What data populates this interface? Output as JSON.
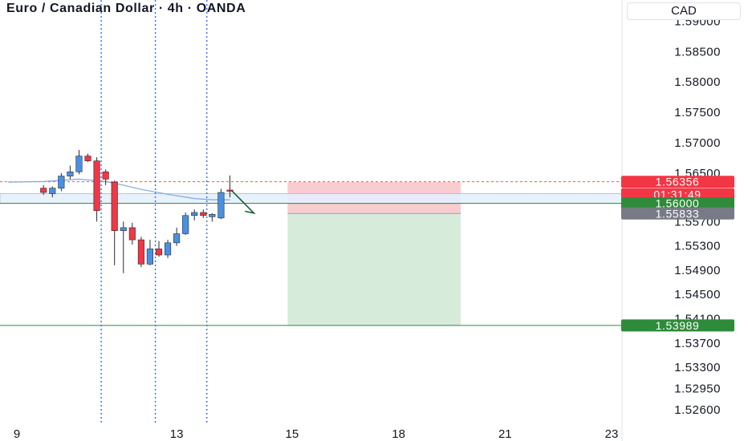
{
  "header": {
    "title": "Euro / Canadian Dollar · 4h · OANDA",
    "currency": "CAD"
  },
  "colors": {
    "up": "#4a90e2",
    "down": "#f23645",
    "ma_line": "#7fa8e0",
    "risk_zone": "#f7c6cb",
    "reward_zone": "#d5ead8",
    "entry_band": "#e6f0fc",
    "tp_green": "#2e8b3a",
    "grey_label": "#787b86",
    "vline": "#2962ff",
    "arrow": "#1b5e35"
  },
  "chart_data": {
    "type": "candlestick",
    "title": "Euro / Canadian Dollar · 4h · OANDA",
    "y_axis": {
      "unit": "CAD",
      "ylim": [
        1.5235,
        1.5935
      ],
      "ticks": [
        "1.59000",
        "1.58500",
        "1.58000",
        "1.57500",
        "1.57000",
        "1.56500",
        "1.56100",
        "1.55700",
        "1.55300",
        "1.54900",
        "1.54500",
        "1.54100",
        "1.53700",
        "1.53300",
        "1.52950",
        "1.52600"
      ]
    },
    "x_axis": {
      "ticks": [
        {
          "label": "9",
          "bar": -3
        },
        {
          "label": "13",
          "bar": 15
        },
        {
          "label": "15",
          "bar": 28
        },
        {
          "label": "18",
          "bar": 40
        },
        {
          "label": "21",
          "bar": 52
        },
        {
          "label": "23",
          "bar": 64
        }
      ],
      "bar_range": [
        -4,
        64
      ]
    },
    "candles": [
      {
        "o": 1.5625,
        "h": 1.563,
        "l": 1.5614,
        "c": 1.5618
      },
      {
        "o": 1.5616,
        "h": 1.5628,
        "l": 1.561,
        "c": 1.5625
      },
      {
        "o": 1.5625,
        "h": 1.565,
        "l": 1.562,
        "c": 1.5645
      },
      {
        "o": 1.5645,
        "h": 1.5662,
        "l": 1.564,
        "c": 1.5652
      },
      {
        "o": 1.5652,
        "h": 1.5688,
        "l": 1.5648,
        "c": 1.5678
      },
      {
        "o": 1.5678,
        "h": 1.5682,
        "l": 1.5668,
        "c": 1.567
      },
      {
        "o": 1.567,
        "h": 1.5676,
        "l": 1.557,
        "c": 1.5588
      },
      {
        "o": 1.5652,
        "h": 1.5656,
        "l": 1.563,
        "c": 1.564
      },
      {
        "o": 1.5635,
        "h": 1.5638,
        "l": 1.5498,
        "c": 1.5555
      },
      {
        "o": 1.5555,
        "h": 1.557,
        "l": 1.5485,
        "c": 1.556
      },
      {
        "o": 1.556,
        "h": 1.5568,
        "l": 1.5532,
        "c": 1.554
      },
      {
        "o": 1.554,
        "h": 1.5545,
        "l": 1.5495,
        "c": 1.55
      },
      {
        "o": 1.55,
        "h": 1.554,
        "l": 1.5498,
        "c": 1.5525
      },
      {
        "o": 1.5525,
        "h": 1.5538,
        "l": 1.5512,
        "c": 1.5515
      },
      {
        "o": 1.5515,
        "h": 1.554,
        "l": 1.551,
        "c": 1.5535
      },
      {
        "o": 1.5535,
        "h": 1.556,
        "l": 1.553,
        "c": 1.555
      },
      {
        "o": 1.555,
        "h": 1.5585,
        "l": 1.5548,
        "c": 1.558
      },
      {
        "o": 1.558,
        "h": 1.559,
        "l": 1.5572,
        "c": 1.5585
      },
      {
        "o": 1.5585,
        "h": 1.559,
        "l": 1.5576,
        "c": 1.558
      },
      {
        "o": 1.5578,
        "h": 1.5584,
        "l": 1.557,
        "c": 1.5582
      },
      {
        "o": 1.5576,
        "h": 1.5624,
        "l": 1.5574,
        "c": 1.5618
      },
      {
        "o": 1.5622,
        "h": 1.5646,
        "l": 1.561,
        "c": 1.562
      }
    ],
    "ma_line": [
      {
        "bar": -4,
        "y": 1.5635
      },
      {
        "bar": 0,
        "y": 1.5636
      },
      {
        "bar": 4,
        "y": 1.564
      },
      {
        "bar": 7,
        "y": 1.5636
      },
      {
        "bar": 9,
        "y": 1.563
      },
      {
        "bar": 11,
        "y": 1.5623
      },
      {
        "bar": 14,
        "y": 1.5615
      },
      {
        "bar": 17,
        "y": 1.5608
      },
      {
        "bar": 19,
        "y": 1.5606
      },
      {
        "bar": 21,
        "y": 1.5606
      }
    ],
    "vlines": [
      6.5,
      12.6,
      18.4
    ],
    "position": {
      "bar_start": 27.5,
      "bar_end": 47,
      "stop": 1.5635,
      "entry": 1.55833,
      "target": 1.53989
    },
    "entry_band": [
      1.56,
      1.5616
    ],
    "hline_green": 1.53989,
    "arrow_path": [
      {
        "bar": 21.2,
        "y": 1.5621
      },
      {
        "bar": 23.7,
        "y": 1.5584
      },
      {
        "bar": 22.7,
        "y": 1.5587
      }
    ],
    "price_labels": [
      {
        "text": "1.56356",
        "value": 1.56356,
        "color": "#f23645"
      },
      {
        "text": "01:31:49",
        "value": 1.5615,
        "color": "#f23645"
      },
      {
        "text": "1.56000",
        "value": 1.56,
        "color": "#2e8b3a"
      },
      {
        "text": "1.55833",
        "value": 1.55833,
        "color": "#787b86"
      },
      {
        "text": "1.53989",
        "value": 1.53989,
        "color": "#2e8b3a"
      }
    ]
  }
}
